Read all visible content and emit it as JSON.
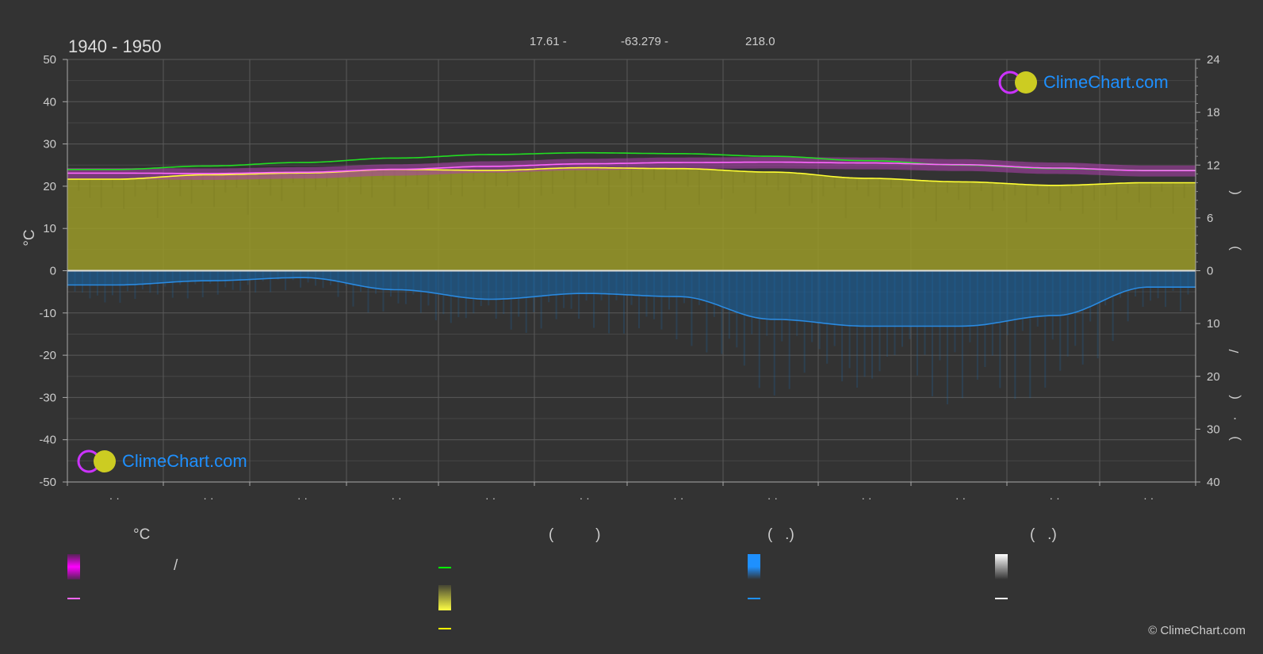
{
  "header": {
    "period": "1940 - 1950",
    "lat": "17.61 -",
    "lon": "-63.279 -",
    "elev": "218.0"
  },
  "branding": {
    "name": "ClimeChart.com",
    "copyright": "© ClimeChart.com"
  },
  "colors": {
    "background": "#333333",
    "daylight": "#00ff00",
    "sunshine": "#ffff00",
    "temp_range": "#ff00ff",
    "temp_mean": "#ff66ff",
    "precip": "#1e90ff",
    "snow": "#ffffff"
  },
  "chart_data": {
    "type": "area",
    "months": 12,
    "left_axis": {
      "label": "°C",
      "range": [
        -50,
        50
      ],
      "ticks": [
        "50",
        "40",
        "30",
        "20",
        "10",
        "0",
        "-10",
        "-20",
        "-30",
        "-40",
        "-50"
      ]
    },
    "right_axis_top": {
      "range": [
        0,
        24
      ],
      "ticks": [
        "24",
        "18",
        "12",
        "6",
        "0"
      ]
    },
    "right_axis_bottom": {
      "range": [
        0,
        40
      ],
      "ticks": [
        "0",
        "10",
        "20",
        "30",
        "40"
      ]
    },
    "right_axis_glyphs": [
      "(",
      ")",
      "/",
      "(",
      "·",
      ")"
    ],
    "month_tick_labels": [
      "· ·",
      "· ·",
      "· ·",
      "· ·",
      "· ·",
      "· ·",
      "· ·",
      "· ·",
      "· ·",
      "· ·",
      "· ·",
      "· ·"
    ],
    "series": {
      "daylight_hours": [
        11.5,
        11.9,
        12.3,
        12.8,
        13.2,
        13.4,
        13.3,
        13.0,
        12.5,
        12.0,
        11.6,
        11.4
      ],
      "sunshine_hours": [
        10.4,
        10.9,
        11.1,
        11.5,
        11.4,
        11.7,
        11.6,
        11.2,
        10.5,
        10.1,
        9.7,
        10.0
      ],
      "temp_max_mean": [
        23.7,
        23.6,
        23.9,
        24.6,
        25.3,
        25.9,
        26.2,
        26.3,
        26.2,
        25.8,
        25.0,
        24.3
      ],
      "temp_min_mean": [
        22.5,
        22.3,
        22.6,
        23.3,
        24.0,
        24.6,
        24.9,
        25.0,
        24.8,
        24.4,
        23.7,
        23.1
      ],
      "temp_mean": [
        23.1,
        23.0,
        23.3,
        24.0,
        24.7,
        25.3,
        25.6,
        25.7,
        25.5,
        25.1,
        24.3,
        23.7
      ],
      "precip_mm": [
        2.7,
        1.9,
        1.3,
        3.6,
        5.4,
        4.3,
        4.9,
        9.2,
        10.5,
        10.5,
        8.5,
        3.1
      ]
    },
    "grid": true
  },
  "legend": {
    "col1": {
      "header": "°C",
      "row1": "/",
      "row2": ""
    },
    "col2": {
      "header": "(          )"
    },
    "col3": {
      "header": "(   .)"
    },
    "col4": {
      "header": "(   .)"
    }
  }
}
